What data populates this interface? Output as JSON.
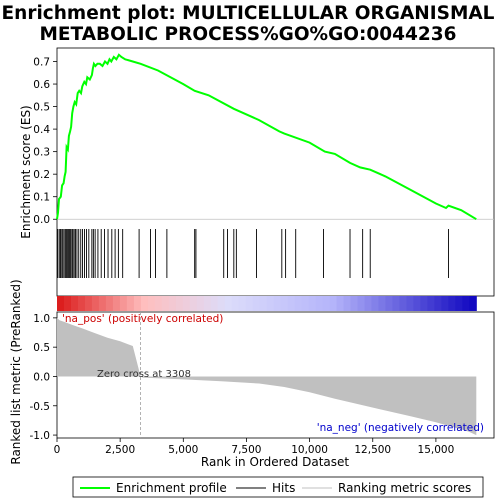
{
  "chart_data": {
    "type": "line",
    "title_line1": "Enrichment plot: MULTICELLULAR ORGANISMAL",
    "title_line2": "METABOLIC PROCESS%GO%GO:0044236",
    "top_panel": {
      "ylabel": "Enrichment score (ES)",
      "ylim": [
        -0.03,
        0.76
      ],
      "yticks": [
        "0.0",
        "0.1",
        "0.2",
        "0.3",
        "0.4",
        "0.5",
        "0.6",
        "0.7"
      ],
      "ytick_values": [
        0.0,
        0.1,
        0.2,
        0.3,
        0.4,
        0.5,
        0.6,
        0.7
      ],
      "series_name": "Enrichment profile",
      "series_color": "#00ff00",
      "es_points": [
        [
          0,
          0.0
        ],
        [
          40,
          0.03
        ],
        [
          80,
          0.09
        ],
        [
          150,
          0.1
        ],
        [
          200,
          0.15
        ],
        [
          260,
          0.16
        ],
        [
          300,
          0.19
        ],
        [
          340,
          0.21
        ],
        [
          380,
          0.32
        ],
        [
          430,
          0.31
        ],
        [
          470,
          0.37
        ],
        [
          520,
          0.39
        ],
        [
          560,
          0.41
        ],
        [
          600,
          0.47
        ],
        [
          650,
          0.5
        ],
        [
          700,
          0.52
        ],
        [
          760,
          0.51
        ],
        [
          820,
          0.56
        ],
        [
          880,
          0.57
        ],
        [
          950,
          0.56
        ],
        [
          1000,
          0.59
        ],
        [
          1080,
          0.61
        ],
        [
          1150,
          0.6
        ],
        [
          1200,
          0.63
        ],
        [
          1300,
          0.62
        ],
        [
          1380,
          0.64
        ],
        [
          1420,
          0.67
        ],
        [
          1460,
          0.69
        ],
        [
          1520,
          0.68
        ],
        [
          1600,
          0.69
        ],
        [
          1700,
          0.69
        ],
        [
          1800,
          0.68
        ],
        [
          1900,
          0.7
        ],
        [
          2000,
          0.69
        ],
        [
          2080,
          0.71
        ],
        [
          2150,
          0.7
        ],
        [
          2250,
          0.72
        ],
        [
          2350,
          0.71
        ],
        [
          2450,
          0.73
        ],
        [
          2550,
          0.72
        ],
        [
          2700,
          0.71
        ],
        [
          3000,
          0.7
        ],
        [
          3308,
          0.69
        ],
        [
          4000,
          0.66
        ],
        [
          5000,
          0.6
        ],
        [
          5450,
          0.57
        ],
        [
          6000,
          0.55
        ],
        [
          7000,
          0.49
        ],
        [
          8000,
          0.44
        ],
        [
          8800,
          0.39
        ],
        [
          9000,
          0.38
        ],
        [
          10000,
          0.34
        ],
        [
          10600,
          0.3
        ],
        [
          11000,
          0.29
        ],
        [
          11600,
          0.25
        ],
        [
          12000,
          0.23
        ],
        [
          12400,
          0.22
        ],
        [
          13000,
          0.19
        ],
        [
          14000,
          0.13
        ],
        [
          15000,
          0.07
        ],
        [
          15400,
          0.05
        ],
        [
          15500,
          0.06
        ],
        [
          16000,
          0.04
        ],
        [
          16600,
          0.0
        ]
      ],
      "hits": [
        30,
        90,
        140,
        190,
        230,
        280,
        330,
        370,
        410,
        460,
        500,
        540,
        590,
        630,
        680,
        730,
        790,
        860,
        940,
        1010,
        1090,
        1170,
        1260,
        1380,
        1440,
        1510,
        1620,
        1750,
        1880,
        2020,
        2170,
        2300,
        2430,
        2600,
        3250,
        3700,
        3900,
        4350,
        5450,
        5500,
        6600,
        6750,
        7000,
        7100,
        7900,
        8900,
        9050,
        9450,
        10550,
        11600,
        12100,
        12400,
        15500
      ]
    },
    "bottom_panel": {
      "ylabel": "Ranked list metric (PreRanked)",
      "xlabel": "Rank in Ordered Dataset",
      "ylim": [
        -1.05,
        1.1
      ],
      "yticks": [
        "1.0",
        "0.5",
        "0.0",
        "-0.5",
        "-1.0"
      ],
      "ytick_values": [
        1.0,
        0.5,
        0.0,
        -0.5,
        -1.0
      ],
      "metric_points": [
        [
          0,
          1.0
        ],
        [
          100,
          0.96
        ],
        [
          300,
          0.93
        ],
        [
          600,
          0.88
        ],
        [
          1000,
          0.82
        ],
        [
          1500,
          0.74
        ],
        [
          2000,
          0.66
        ],
        [
          2500,
          0.6
        ],
        [
          3000,
          0.52
        ],
        [
          3308,
          0.0
        ],
        [
          3400,
          -0.02
        ],
        [
          5000,
          -0.05
        ],
        [
          6500,
          -0.08
        ],
        [
          8000,
          -0.12
        ],
        [
          9000,
          -0.18
        ],
        [
          10000,
          -0.27
        ],
        [
          11000,
          -0.38
        ],
        [
          12000,
          -0.48
        ],
        [
          13000,
          -0.58
        ],
        [
          14000,
          -0.68
        ],
        [
          15000,
          -0.78
        ],
        [
          15800,
          -0.88
        ],
        [
          16300,
          -0.94
        ],
        [
          16600,
          -1.0
        ]
      ],
      "pos_label": "'na_pos' (positively correlated)",
      "neg_label": "'na_neg' (negatively correlated)",
      "zero_cross_label": "Zero cross at 3308",
      "zero_cross": 3308
    },
    "xlim": [
      0,
      17300
    ],
    "xticks": [
      "0",
      "2,500",
      "5,000",
      "7,500",
      "10,000",
      "12,500",
      "15,000"
    ],
    "xtick_values": [
      0,
      2500,
      5000,
      7500,
      10000,
      12500,
      15000
    ],
    "n_genes": 16600,
    "legend": [
      {
        "label": "Enrichment profile",
        "color": "#00ff00"
      },
      {
        "label": "Hits",
        "color": "#000000"
      },
      {
        "label": "Ranking metric scores",
        "color": "#c0c0c0"
      }
    ]
  }
}
